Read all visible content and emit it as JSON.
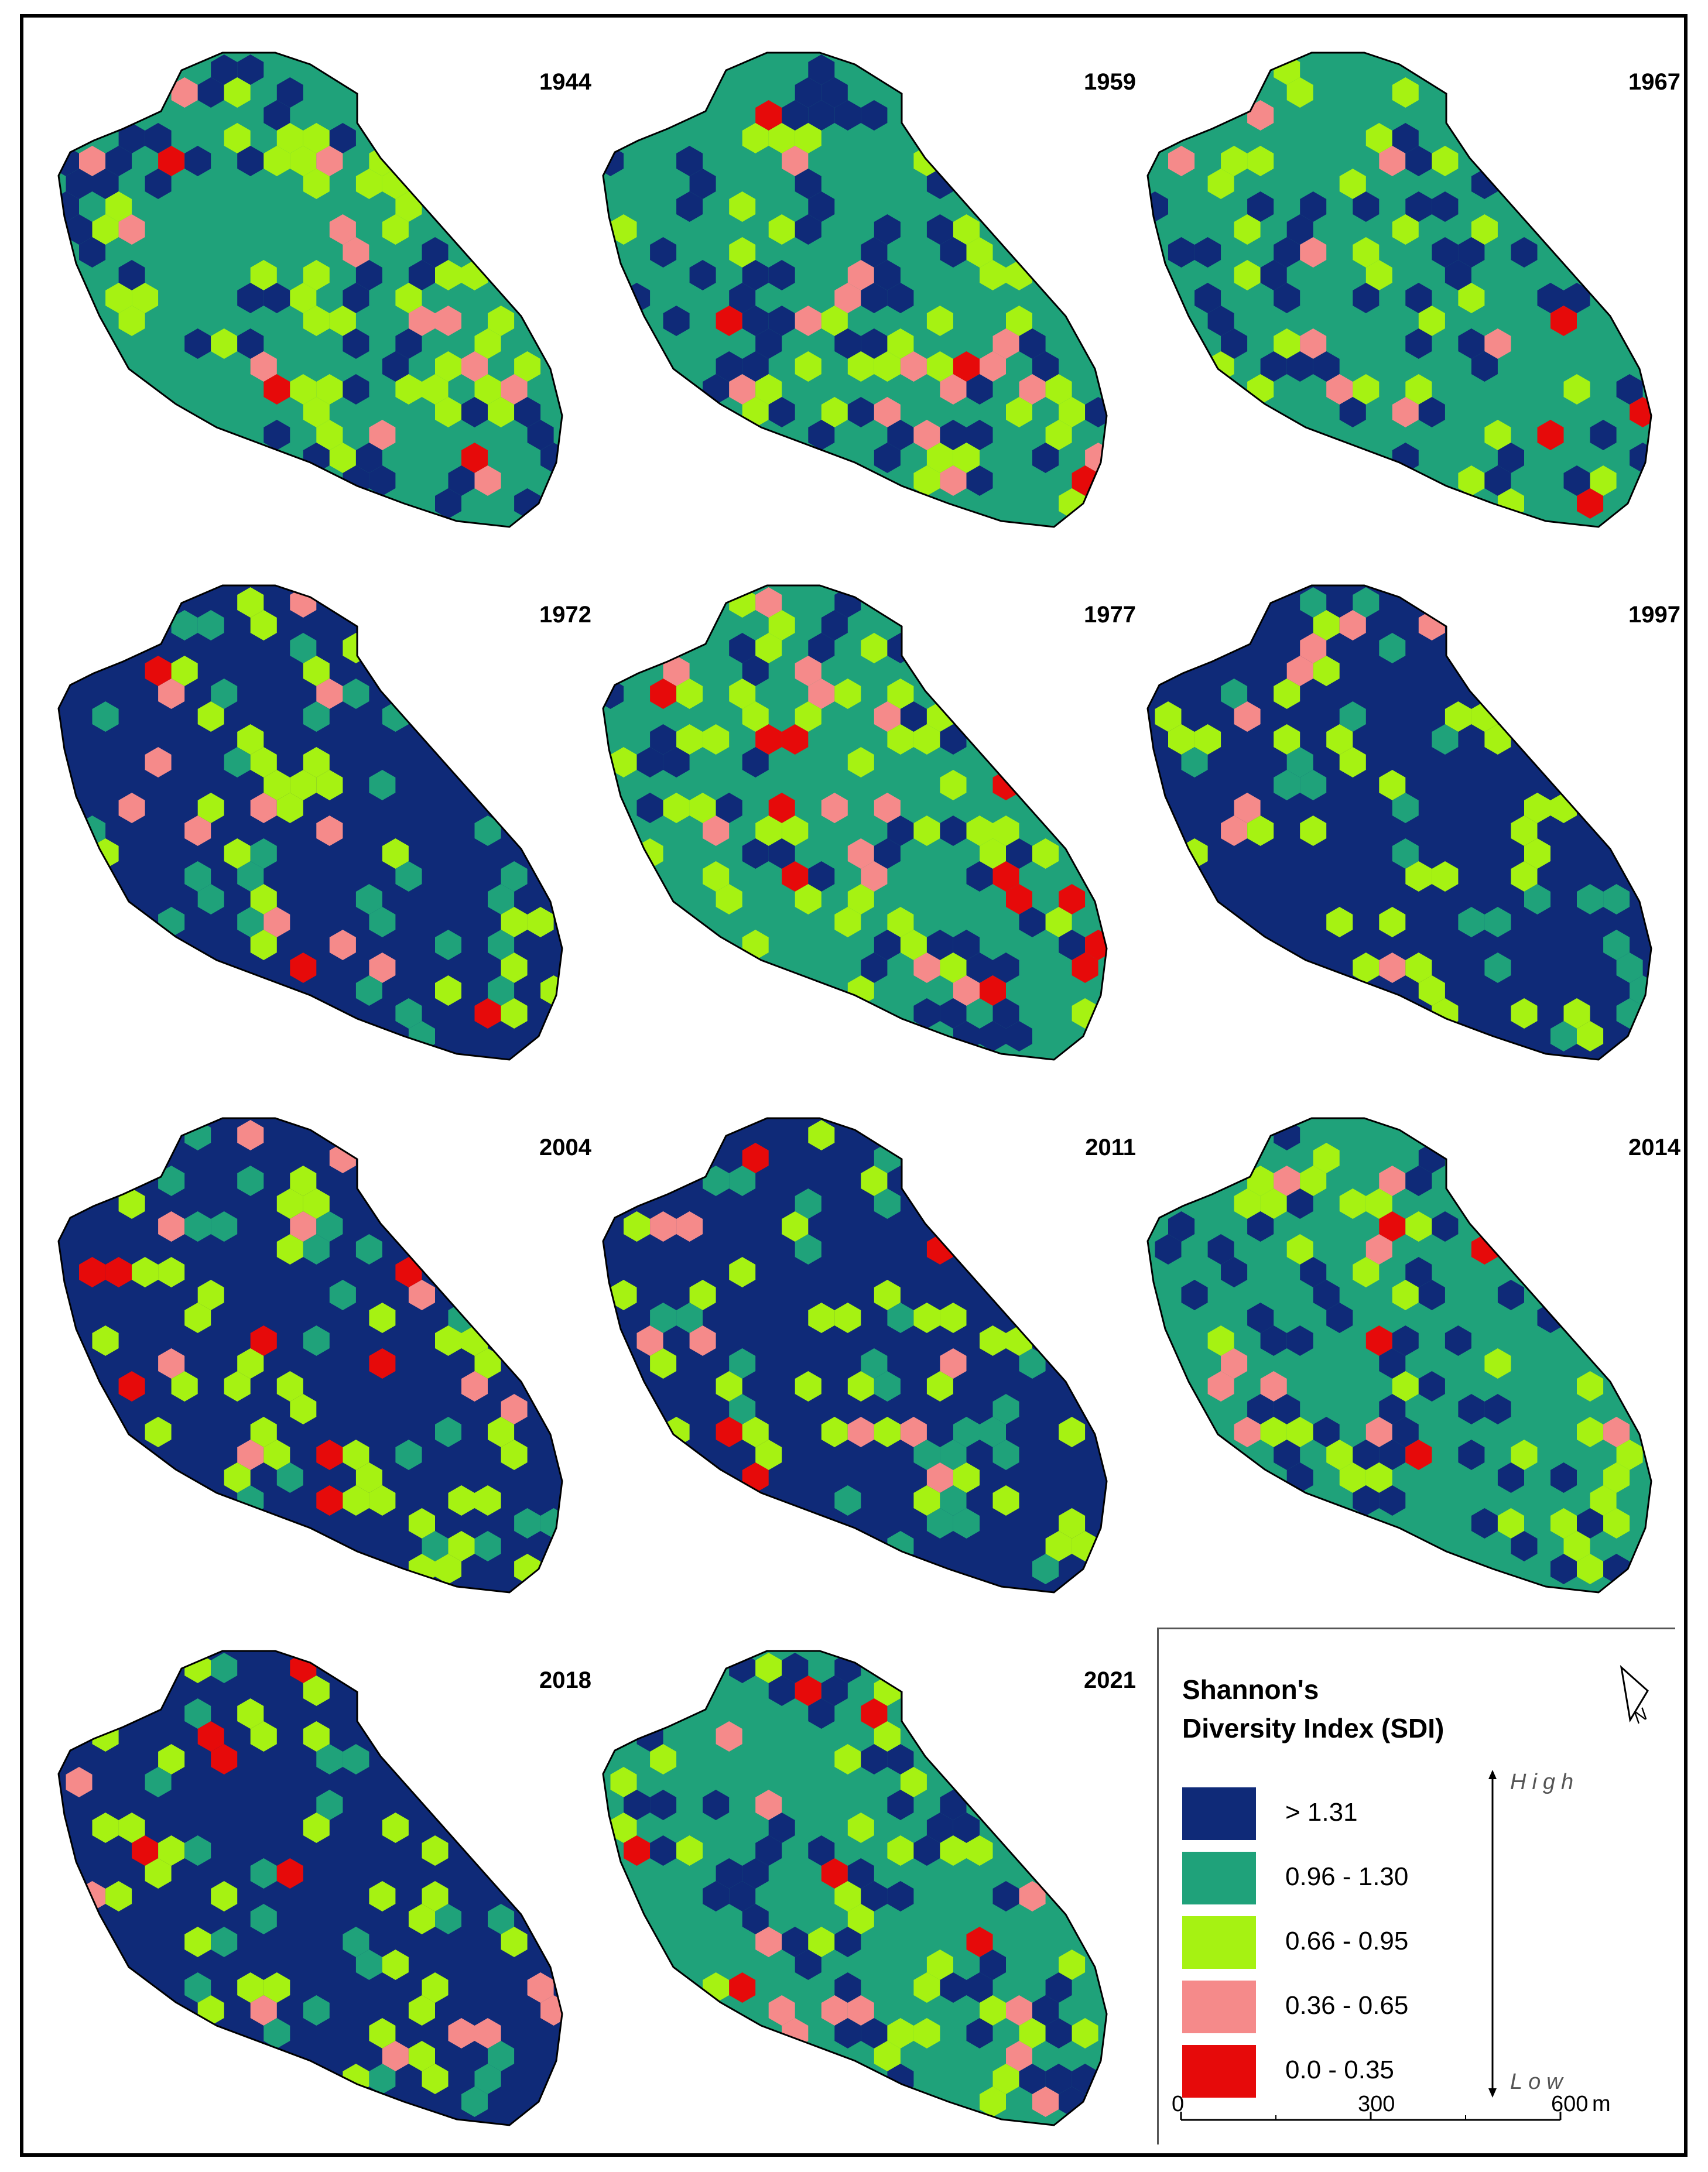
{
  "maps": [
    {
      "year": "1944",
      "dominant": "medium_high",
      "seed": 11
    },
    {
      "year": "1959",
      "dominant": "medium_high",
      "seed": 23
    },
    {
      "year": "1967",
      "dominant": "medium_high",
      "seed": 37
    },
    {
      "year": "1972",
      "dominant": "high",
      "seed": 41
    },
    {
      "year": "1977",
      "dominant": "medium_high",
      "seed": 53
    },
    {
      "year": "1997",
      "dominant": "high",
      "seed": 67
    },
    {
      "year": "2004",
      "dominant": "high",
      "seed": 71
    },
    {
      "year": "2011",
      "dominant": "high",
      "seed": 83
    },
    {
      "year": "2014",
      "dominant": "medium_high",
      "seed": 97
    },
    {
      "year": "2018",
      "dominant": "high",
      "seed": 101
    },
    {
      "year": "2021",
      "dominant": "medium_high",
      "seed": 113
    }
  ],
  "legend": {
    "title_line1": "Shannon's",
    "title_line2": "Diversity Index (SDI)",
    "classes": [
      {
        "key": "high",
        "label": "> 1.31",
        "color": "#0f2a78"
      },
      {
        "key": "medium_high",
        "label": "0.96 - 1.30",
        "color": "#1fa27a"
      },
      {
        "key": "medium",
        "label": "0.66 - 0.95",
        "color": "#a6f212"
      },
      {
        "key": "low",
        "label": "0.36 - 0.65",
        "color": "#f58a8a"
      },
      {
        "key": "very_low",
        "label": "0.0 - 0.35",
        "color": "#e60a0a"
      }
    ],
    "high_label": "High",
    "low_label": "Low",
    "north_label": "N",
    "scale": {
      "ticks": [
        "0",
        "300",
        "600"
      ],
      "unit": "m"
    }
  }
}
